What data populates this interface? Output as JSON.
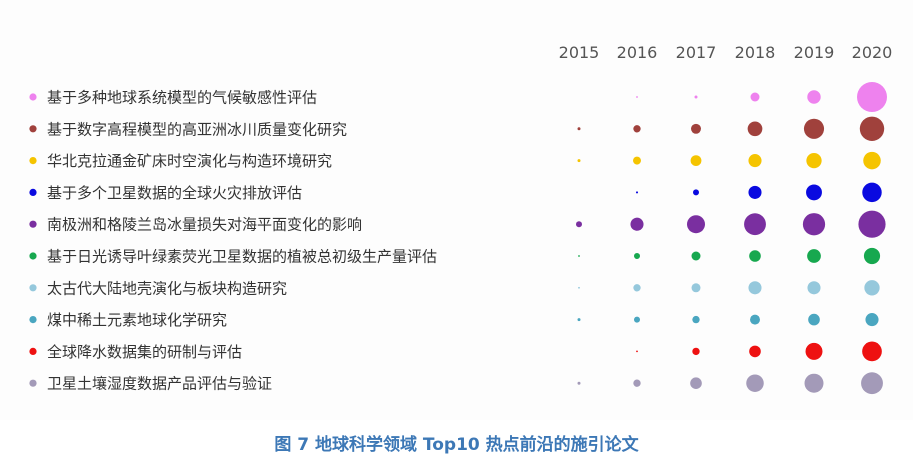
{
  "caption": "图 7 地球科学领域 Top10 热点前沿的施引论文",
  "chart_data": {
    "type": "bubble",
    "years": [
      "2015",
      "2016",
      "2017",
      "2018",
      "2019",
      "2020"
    ],
    "value_note": "relative bubble size (0-100), estimated from visual area; no numeric labels shown",
    "series": [
      {
        "name": "基于多种地球系统模型的气候敏感性评估",
        "color": "#ee82ee",
        "values": [
          0,
          0.3,
          1,
          9,
          20,
          100
        ]
      },
      {
        "name": "基于数字高程模型的高亚洲冰川质量变化研究",
        "color": "#a0413c",
        "values": [
          1,
          6,
          11,
          24,
          45,
          66
        ]
      },
      {
        "name": "华北克拉通金矿床时空演化与构造环境研究",
        "color": "#f5c400",
        "values": [
          1,
          7,
          13,
          19,
          26,
          34
        ]
      },
      {
        "name": "基于多个卫星数据的全球火灾排放评估",
        "color": "#0a0ae0",
        "values": [
          0,
          0.5,
          4,
          19,
          28,
          42
        ]
      },
      {
        "name": "南极洲和格陵兰岛冰量损失对海平面变化的影响",
        "color": "#7a2fa0",
        "values": [
          4,
          19,
          36,
          53,
          55,
          82
        ]
      },
      {
        "name": "基于日光诱导叶绿素荧光卫星数据的植被总初级生产量评估",
        "color": "#17a84f",
        "values": [
          0.3,
          4,
          9,
          15,
          21,
          29
        ]
      },
      {
        "name": "太古代大陆地壳演化与板块构造研究",
        "color": "#95c8dc",
        "values": [
          0.3,
          6,
          9,
          19,
          19,
          26
        ]
      },
      {
        "name": "煤中稀土元素地球化学研究",
        "color": "#4aa6c0",
        "values": [
          1,
          4,
          6,
          11,
          15,
          19
        ]
      },
      {
        "name": "全球降水数据集的研制与评估",
        "color": "#ee1111",
        "values": [
          0,
          0.2,
          6,
          15,
          32,
          43
        ]
      },
      {
        "name": "卫星土壤湿度数据产品评估与验证",
        "color": "#a39ab8",
        "values": [
          1,
          6,
          15,
          34,
          40,
          53
        ]
      }
    ]
  }
}
